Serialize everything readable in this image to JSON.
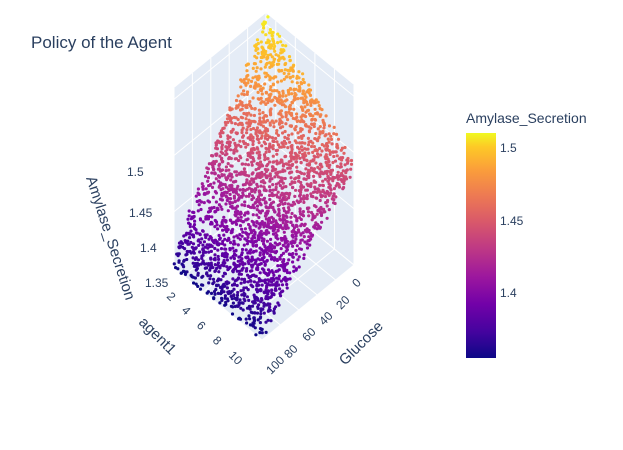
{
  "chart_data": {
    "type": "scatter",
    "title": "Policy of the Agent",
    "axes": {
      "x": {
        "label": "agent1",
        "ticks": [
          "2",
          "4",
          "6",
          "8",
          "10"
        ]
      },
      "y": {
        "label": "Glucose",
        "ticks": [
          "0",
          "20",
          "40",
          "60",
          "80",
          "100"
        ]
      },
      "z": {
        "label": "Amylase_Secretion",
        "ticks": [
          "1.35",
          "1.4",
          "1.45",
          "1.5"
        ]
      }
    },
    "colorbar": {
      "title": "Amylase_Secretion",
      "ticks": [
        "1.5",
        "1.45",
        "1.4"
      ],
      "range": [
        1.35,
        1.51
      ],
      "colorscale": "plasma"
    },
    "ranges": {
      "agent1": [
        1,
        10
      ],
      "glucose": [
        0,
        100
      ],
      "amylase": [
        1.35,
        1.51
      ]
    }
  }
}
